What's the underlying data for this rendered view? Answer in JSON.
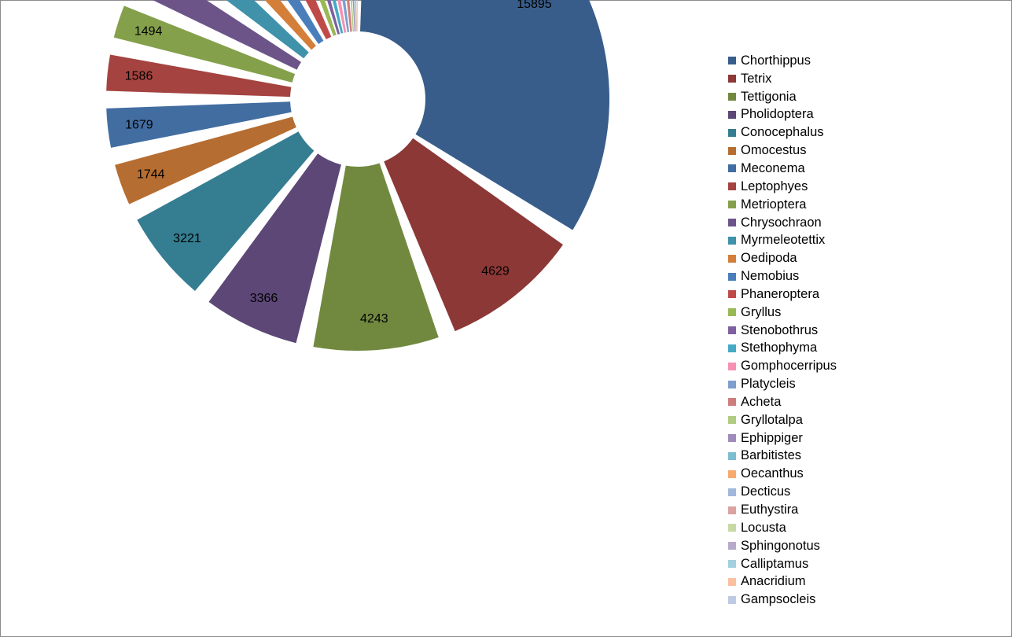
{
  "chart_data": {
    "type": "pie",
    "exploded": true,
    "legend_position": "right",
    "title": "",
    "series": [
      {
        "name": "Chorthippus",
        "value": 15895,
        "color": "#385D8A"
      },
      {
        "name": "Tetrix",
        "value": 4629,
        "color": "#8C3836"
      },
      {
        "name": "Tettigonia",
        "value": 4243,
        "color": "#71893F"
      },
      {
        "name": "Pholidoptera",
        "value": 3366,
        "color": "#5C4776"
      },
      {
        "name": "Conocephalus",
        "value": 3221,
        "color": "#357D91"
      },
      {
        "name": "Omocestus",
        "value": 1744,
        "color": "#B66D31"
      },
      {
        "name": "Meconema",
        "value": 1679,
        "color": "#426DA1"
      },
      {
        "name": "Leptophyes",
        "value": 1586,
        "color": "#A44340"
      },
      {
        "name": "Metrioptera",
        "value": 1494,
        "color": "#84A04B"
      },
      {
        "name": "Chrysochraon",
        "value": 1468,
        "color": "#6C5489"
      },
      {
        "name": "Myrmeleotettix",
        "value": 1322,
        "color": "#3F92A9"
      },
      {
        "name": "Oedipoda",
        "value": 1002,
        "color": "#D37F3A"
      },
      {
        "name": "Nemobius",
        "value": 988,
        "color": "#4A7EBB"
      },
      {
        "name": "Phaneroptera",
        "value": 946,
        "color": "#BE4B48"
      },
      {
        "name": "Gryllus",
        "value": 519,
        "color": "#98B954"
      },
      {
        "name": "Stenobothrus",
        "value": 371,
        "color": "#7D60A0"
      },
      {
        "name": "Stethophyma",
        "value": 363,
        "color": "#46AAC5"
      },
      {
        "name": "Gomphocerripus",
        "value": 355,
        "color": "#F691B2"
      },
      {
        "name": "Platycleis",
        "value": 322,
        "color": "#7E9ECC"
      },
      {
        "name": "Acheta",
        "value": 308,
        "color": "#CE7E7C"
      },
      {
        "name": "Gryllotalpa",
        "value": 172,
        "color": "#B1CB80"
      },
      {
        "name": "Ephippiger",
        "value": 134,
        "color": "#9F8CBA"
      },
      {
        "name": "Barbitistes",
        "value": 99,
        "color": "#7BBDD1"
      },
      {
        "name": "Oecanthus",
        "value": 60,
        "color": "#F7A96E"
      },
      {
        "name": "Decticus",
        "value": 17,
        "color": "#A2B7DA"
      },
      {
        "name": "Euthystira",
        "value": 7,
        "color": "#DAA3A2"
      },
      {
        "name": "Locusta",
        "value": 4,
        "color": "#C6D9A5"
      },
      {
        "name": "Sphingonotus",
        "value": 2,
        "color": "#B7AACB"
      },
      {
        "name": "Calliptamus",
        "value": 68,
        "color": "#A3D0DE"
      },
      {
        "name": "Anacridium",
        "value": 3,
        "color": "#FAC0A1"
      },
      {
        "name": "Gampsocleis",
        "value": 2,
        "color": "#BDCBE2"
      },
      {
        "name": "",
        "value": 2,
        "color": "#C9D4E8"
      }
    ]
  }
}
